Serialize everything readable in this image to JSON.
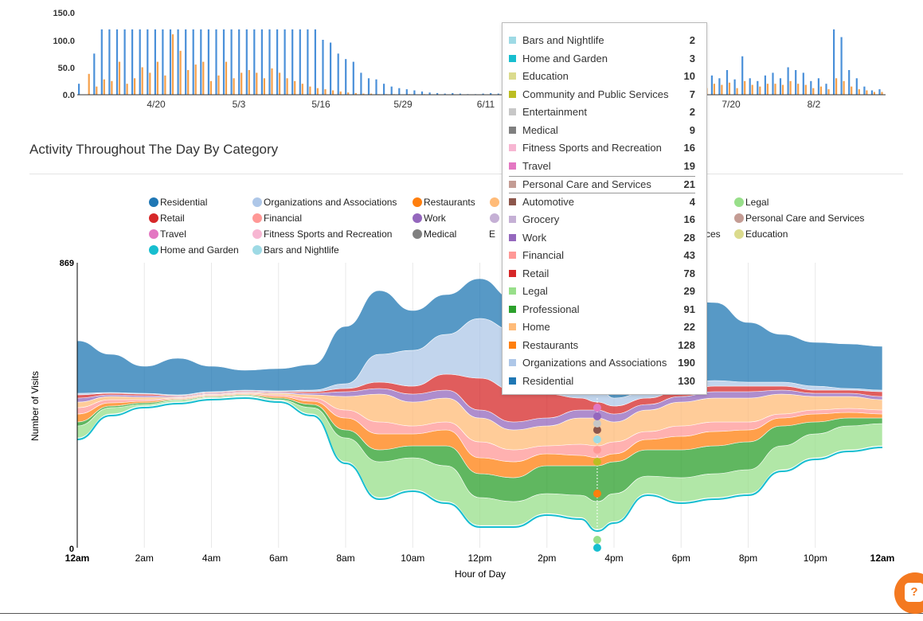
{
  "top_chart": {
    "y_ticks": [
      "150.0",
      "100.0",
      "50.0",
      "0.0"
    ],
    "x_ticks": [
      "4/20",
      "5/3",
      "5/16",
      "5/29",
      "6/11",
      "7/20",
      "8/2"
    ],
    "colors": {
      "series_a": "#4a90d9",
      "series_b": "#f5a04a"
    }
  },
  "section_title": "Activity Throughout The Day By Category",
  "legend": [
    {
      "label": "Residential",
      "color": "#1f77b4"
    },
    {
      "label": "Organizations and Associations",
      "color": "#aec7e8"
    },
    {
      "label": "Restaurants",
      "color": "#ff7f0e"
    },
    {
      "label": "Legal",
      "color": "#98df8a"
    },
    {
      "label": "Retail",
      "color": "#d62728"
    },
    {
      "label": "Financial",
      "color": "#ff9896"
    },
    {
      "label": "Work",
      "color": "#9467bd"
    },
    {
      "label": "Personal Care and Services",
      "color": "#c49c94"
    },
    {
      "label": "Travel",
      "color": "#e377c2"
    },
    {
      "label": "Fitness Sports and Recreation",
      "color": "#f7b6d2"
    },
    {
      "label": "Medical",
      "color": "#7f7f7f"
    },
    {
      "label": "Education",
      "color": "#dbdb8d"
    },
    {
      "label": "Home and Garden",
      "color": "#17becf"
    },
    {
      "label": "Bars and Nightlife",
      "color": "#9edae5"
    }
  ],
  "legend_partial": [
    "",
    "ces"
  ],
  "chart_data": {
    "type": "area",
    "ylabel": "Number of Visits",
    "xlabel": "Hour of Day",
    "y_ticks": [
      "869",
      "0"
    ],
    "ylim": [
      0,
      869
    ],
    "x_ticks": [
      "12am",
      "2am",
      "4am",
      "6am",
      "8am",
      "10am",
      "12pm",
      "2pm",
      "4pm",
      "6pm",
      "8pm",
      "10pm",
      "12am"
    ],
    "hover_x": "3:30pm",
    "tooltip": [
      {
        "name": "Bars and Nightlife",
        "value": 2,
        "color": "#9edae5"
      },
      {
        "name": "Home and Garden",
        "value": 3,
        "color": "#17becf"
      },
      {
        "name": "Education",
        "value": 10,
        "color": "#dbdb8d"
      },
      {
        "name": "Community and Public Services",
        "value": 7,
        "color": "#bcbd22"
      },
      {
        "name": "Entertainment",
        "value": 2,
        "color": "#c7c7c7"
      },
      {
        "name": "Medical",
        "value": 9,
        "color": "#7f7f7f"
      },
      {
        "name": "Fitness Sports and Recreation",
        "value": 16,
        "color": "#f7b6d2"
      },
      {
        "name": "Travel",
        "value": 19,
        "color": "#e377c2"
      },
      {
        "name": "Personal Care and Services",
        "value": 21,
        "color": "#c49c94"
      },
      {
        "name": "Automotive",
        "value": 4,
        "color": "#8c564b"
      },
      {
        "name": "Grocery",
        "value": 16,
        "color": "#c5b0d5"
      },
      {
        "name": "Work",
        "value": 28,
        "color": "#9467bd"
      },
      {
        "name": "Financial",
        "value": 43,
        "color": "#ff9896"
      },
      {
        "name": "Retail",
        "value": 78,
        "color": "#d62728"
      },
      {
        "name": "Legal",
        "value": 29,
        "color": "#98df8a"
      },
      {
        "name": "Professional",
        "value": 91,
        "color": "#2ca02c"
      },
      {
        "name": "Home",
        "value": 22,
        "color": "#ffbb78"
      },
      {
        "name": "Restaurants",
        "value": 128,
        "color": "#ff7f0e"
      },
      {
        "name": "Organizations and Associations",
        "value": 190,
        "color": "#aec7e8"
      },
      {
        "name": "Residential",
        "value": 130,
        "color": "#1f77b4"
      }
    ],
    "highlighted": "Personal Care and Services"
  },
  "help_button": "?"
}
